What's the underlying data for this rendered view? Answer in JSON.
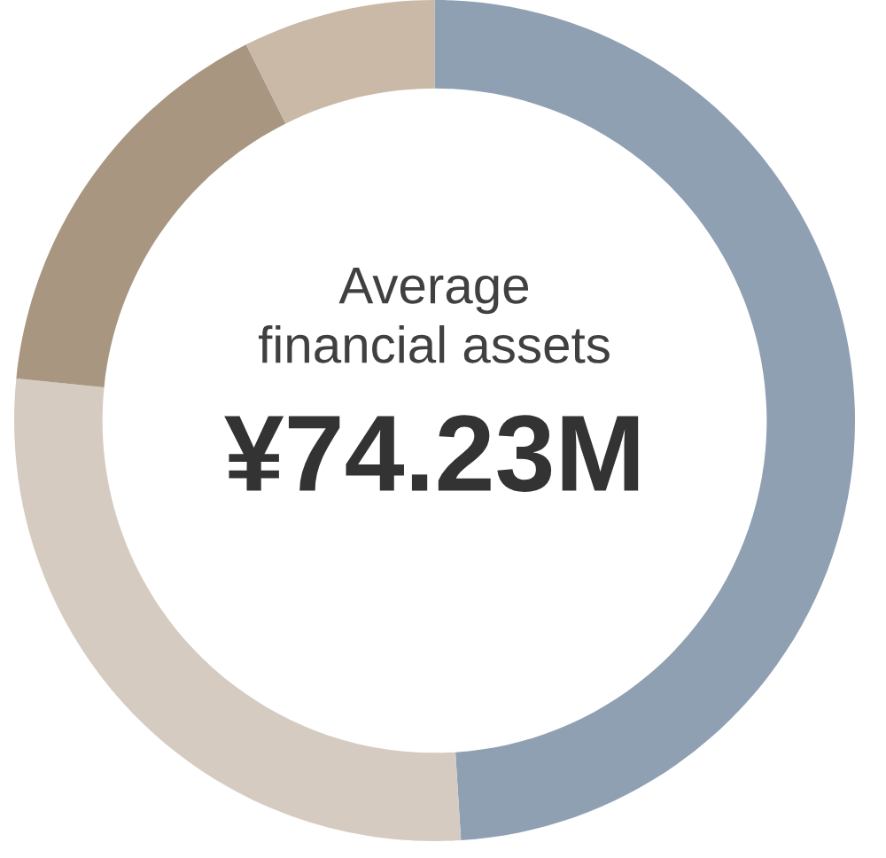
{
  "chart_data": {
    "type": "donut",
    "categories": [
      null,
      null,
      null,
      null
    ],
    "values": [
      49,
      27.6,
      16,
      7.4
    ],
    "colors": [
      "#8fa0b3",
      "#d5cbc1",
      "#a89680",
      "#c9b9a6"
    ],
    "annotations": [
      "Average\nfinancial assets",
      "¥74.23M"
    ]
  }
}
